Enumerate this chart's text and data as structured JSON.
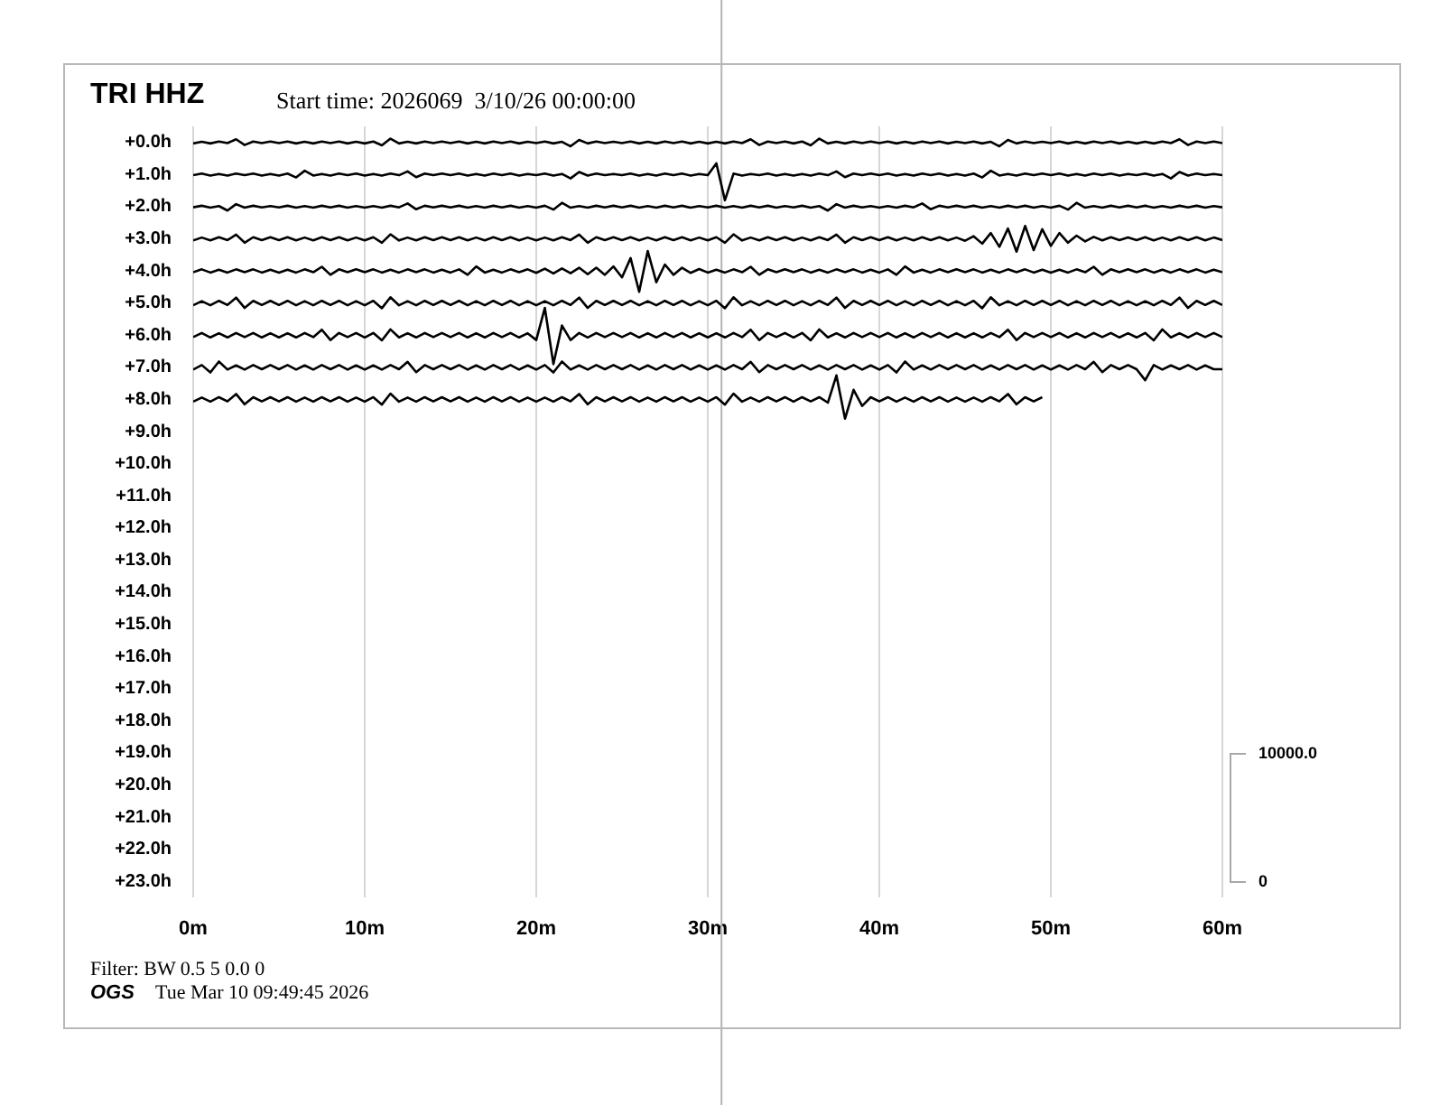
{
  "chart_data": {
    "type": "line",
    "title": "TRI HHZ",
    "subtitle": "Start time: 2026069  3/10/26 00:00:00",
    "annotations": [
      "10000.0",
      "0",
      "Filter: BW 0.5 5 0.0 0",
      "OGS",
      "Tue Mar 10 09:49:45 2026"
    ],
    "x": [
      0,
      0.5,
      1,
      1.5,
      2,
      2.5,
      3,
      3.5,
      4,
      4.5,
      5,
      5.5,
      6,
      6.5,
      7,
      7.5,
      8,
      8.5,
      9,
      9.5,
      10,
      10.5,
      11,
      11.5,
      12,
      12.5,
      13,
      13.5,
      14,
      14.5,
      15,
      15.5,
      16,
      16.5,
      17,
      17.5,
      18,
      18.5,
      19,
      19.5,
      20,
      20.5,
      21,
      21.5,
      22,
      22.5,
      23,
      23.5,
      24,
      24.5,
      25,
      25.5,
      26,
      26.5,
      27,
      27.5,
      28,
      28.5,
      29,
      29.5,
      30,
      30.5,
      31,
      31.5,
      32,
      32.5,
      33,
      33.5,
      34,
      34.5,
      35,
      35.5,
      36,
      36.5,
      37,
      37.5,
      38,
      38.5,
      39,
      39.5,
      40,
      40.5,
      41,
      41.5,
      42,
      42.5,
      43,
      43.5,
      44,
      44.5,
      45,
      45.5,
      46,
      46.5,
      47,
      47.5,
      48,
      48.5,
      49,
      49.5,
      50,
      50.5,
      51,
      51.5,
      52,
      52.5,
      53,
      53.5,
      54,
      54.5,
      55,
      55.5,
      56,
      56.5,
      57,
      57.5,
      58,
      58.5,
      59,
      59.5,
      60
    ],
    "xlim": [
      0,
      60
    ],
    "xticks": [
      {
        "value": 0,
        "label": "0m"
      },
      {
        "value": 10,
        "label": "10m"
      },
      {
        "value": 20,
        "label": "20m"
      },
      {
        "value": 30,
        "label": "30m"
      },
      {
        "value": 40,
        "label": "40m"
      },
      {
        "value": 50,
        "label": "50m"
      },
      {
        "value": 60,
        "label": "60m"
      }
    ],
    "ylim": [
      23.5,
      -0.5
    ],
    "yticks": [
      {
        "value": 0,
        "label": "+0.0h"
      },
      {
        "value": 1,
        "label": "+1.0h"
      },
      {
        "value": 2,
        "label": "+2.0h"
      },
      {
        "value": 3,
        "label": "+3.0h"
      },
      {
        "value": 4,
        "label": "+4.0h"
      },
      {
        "value": 5,
        "label": "+5.0h"
      },
      {
        "value": 6,
        "label": "+6.0h"
      },
      {
        "value": 7,
        "label": "+7.0h"
      },
      {
        "value": 8,
        "label": "+8.0h"
      },
      {
        "value": 9,
        "label": "+9.0h"
      },
      {
        "value": 10,
        "label": "+10.0h"
      },
      {
        "value": 11,
        "label": "+11.0h"
      },
      {
        "value": 12,
        "label": "+12.0h"
      },
      {
        "value": 13,
        "label": "+13.0h"
      },
      {
        "value": 14,
        "label": "+14.0h"
      },
      {
        "value": 15,
        "label": "+15.0h"
      },
      {
        "value": 16,
        "label": "+16.0h"
      },
      {
        "value": 17,
        "label": "+17.0h"
      },
      {
        "value": 18,
        "label": "+18.0h"
      },
      {
        "value": 19,
        "label": "+19.0h"
      },
      {
        "value": 20,
        "label": "+20.0h"
      },
      {
        "value": 21,
        "label": "+21.0h"
      },
      {
        "value": 22,
        "label": "+22.0h"
      },
      {
        "value": 23,
        "label": "+23.0h"
      }
    ],
    "grid": "x",
    "ref_lines": [
      {
        "axis": "x",
        "value": 30.8,
        "color": "#b4b4b4"
      }
    ],
    "series": [
      {
        "color": "#000000",
        "values": [
          0.03,
          -0.02,
          0.03,
          -0.03,
          0.02,
          -0.1,
          0.08,
          -0.03,
          0.02,
          -0.03,
          0.02,
          -0.03,
          0.03,
          -0.02,
          0.03,
          -0.03,
          0.02,
          -0.03,
          0.03,
          -0.02,
          0.03,
          -0.03,
          0.09,
          -0.12,
          0.03,
          -0.02,
          0.03,
          -0.03,
          0.02,
          -0.03,
          0.02,
          -0.03,
          0.03,
          -0.02,
          0.03,
          -0.03,
          0.02,
          -0.03,
          0.03,
          -0.02,
          0.02,
          -0.03,
          0.03,
          -0.02,
          0.12,
          -0.08,
          0.03,
          -0.03,
          0.02,
          -0.02,
          0.02,
          -0.03,
          0.03,
          -0.02,
          0.03,
          -0.03,
          0.02,
          -0.03,
          0.03,
          -0.02,
          0.03,
          -0.02,
          0.03,
          -0.03,
          0.02,
          -0.1,
          0.08,
          -0.03,
          0.02,
          -0.03,
          0.03,
          -0.03,
          0.09,
          -0.12,
          0.03,
          -0.02,
          0.03,
          -0.03,
          0.02,
          -0.03,
          0.02,
          -0.03,
          0.03,
          -0.02,
          0.03,
          -0.03,
          0.02,
          -0.03,
          0.03,
          -0.02,
          0.02,
          -0.03,
          0.03,
          -0.02,
          0.12,
          -0.08,
          0.03,
          -0.03,
          0.02,
          -0.02,
          0.02,
          -0.03,
          0.03,
          -0.02,
          0.03,
          -0.03,
          0.02,
          -0.03,
          0.03,
          -0.02,
          0.03,
          -0.02,
          0.03,
          -0.03,
          0.02,
          -0.1,
          0.08,
          -0.03,
          0.02,
          -0.03,
          0.02
        ]
      },
      {
        "color": "#000000",
        "values": [
          1.02,
          0.97,
          1.03,
          0.98,
          1.03,
          0.97,
          1.02,
          0.97,
          1.03,
          0.98,
          1.03,
          0.97,
          1.09,
          0.88,
          1.03,
          0.98,
          1.03,
          0.97,
          1.02,
          0.97,
          1.03,
          0.98,
          1.03,
          0.97,
          1.02,
          0.9,
          1.08,
          0.97,
          1.02,
          0.97,
          1.02,
          0.97,
          1.03,
          0.98,
          1.03,
          0.97,
          1.02,
          0.97,
          1.03,
          0.98,
          1.02,
          0.97,
          1.03,
          0.98,
          1.12,
          0.92,
          1.03,
          0.97,
          1.02,
          0.98,
          1.02,
          0.97,
          1.03,
          0.98,
          1.03,
          0.97,
          1.02,
          0.97,
          1.03,
          0.98,
          1.02,
          0.65,
          1.8,
          0.97,
          1.03,
          0.98,
          1.02,
          0.97,
          1.03,
          0.98,
          1.03,
          0.98,
          1.03,
          0.97,
          1.02,
          0.9,
          1.08,
          0.97,
          1.02,
          0.97,
          1.02,
          0.97,
          1.03,
          0.98,
          1.03,
          0.97,
          1.02,
          0.97,
          1.03,
          0.98,
          1.03,
          0.97,
          1.09,
          0.88,
          1.03,
          0.98,
          1.03,
          0.97,
          1.02,
          0.97,
          1.02,
          0.97,
          1.03,
          0.98,
          1.03,
          0.97,
          1.02,
          0.97,
          1.03,
          0.98,
          1.02,
          0.97,
          1.03,
          0.98,
          1.12,
          0.92,
          1.03,
          0.97,
          1.02,
          0.98,
          1.02
        ]
      },
      {
        "color": "#000000",
        "values": [
          2.02,
          1.97,
          2.03,
          1.98,
          2.12,
          1.92,
          2.03,
          1.97,
          2.02,
          1.98,
          2.02,
          1.97,
          2.03,
          1.98,
          2.03,
          1.97,
          2.02,
          1.97,
          2.03,
          1.98,
          2.03,
          1.98,
          2.03,
          1.97,
          2.02,
          1.9,
          2.08,
          1.97,
          2.02,
          1.97,
          2.02,
          1.97,
          2.03,
          1.98,
          2.03,
          1.97,
          2.02,
          1.97,
          2.03,
          1.98,
          2.03,
          1.97,
          2.09,
          1.88,
          2.03,
          1.98,
          2.03,
          1.97,
          2.02,
          1.97,
          2.02,
          1.97,
          2.03,
          1.98,
          2.03,
          1.97,
          2.02,
          1.97,
          2.03,
          1.98,
          2.02,
          1.97,
          2.03,
          1.98,
          2.03,
          1.97,
          2.02,
          1.97,
          2.03,
          1.98,
          2.02,
          1.97,
          2.03,
          1.98,
          2.12,
          1.92,
          2.03,
          1.97,
          2.02,
          1.98,
          2.03,
          1.98,
          2.03,
          1.97,
          2.02,
          1.9,
          2.08,
          1.97,
          2.02,
          1.97,
          2.02,
          1.97,
          2.03,
          1.98,
          2.03,
          1.97,
          2.02,
          1.97,
          2.03,
          1.98,
          2.03,
          1.97,
          2.09,
          1.88,
          2.03,
          1.98,
          2.03,
          1.97,
          2.02,
          1.97,
          2.02,
          1.97,
          2.03,
          1.98,
          2.03,
          1.97,
          2.02,
          1.97,
          2.03,
          1.98,
          2.02
        ]
      },
      {
        "color": "#000000",
        "values": [
          3.05,
          2.96,
          3.05,
          2.95,
          3.04,
          2.87,
          3.12,
          2.95,
          3.04,
          2.95,
          3.04,
          2.95,
          3.05,
          2.96,
          3.05,
          2.95,
          3.04,
          2.95,
          3.05,
          2.96,
          3.05,
          2.95,
          3.12,
          2.86,
          3.05,
          2.96,
          3.05,
          2.95,
          3.04,
          2.95,
          3.04,
          2.95,
          3.05,
          2.96,
          3.05,
          2.95,
          3.04,
          2.95,
          3.05,
          2.96,
          3.05,
          2.96,
          3.05,
          2.95,
          3.04,
          2.87,
          3.12,
          2.95,
          3.04,
          2.95,
          3.04,
          2.95,
          3.05,
          2.96,
          3.05,
          2.95,
          3.04,
          2.95,
          3.05,
          2.96,
          3.05,
          2.95,
          3.12,
          2.86,
          3.05,
          2.96,
          3.05,
          2.95,
          3.04,
          2.95,
          3.05,
          2.96,
          3.05,
          2.95,
          3.04,
          2.87,
          3.12,
          2.95,
          3.04,
          2.95,
          3.04,
          2.95,
          3.05,
          2.96,
          3.05,
          2.95,
          3.04,
          2.95,
          3.05,
          2.96,
          3.06,
          2.92,
          3.15,
          2.82,
          3.25,
          2.68,
          3.4,
          2.6,
          3.35,
          2.7,
          3.22,
          2.82,
          3.12,
          2.9,
          3.08,
          2.94,
          3.05,
          2.95,
          3.04,
          2.96,
          3.04,
          2.95,
          3.05,
          2.96,
          3.05,
          2.95,
          3.04,
          2.95,
          3.05,
          2.96,
          3.04
        ]
      },
      {
        "color": "#000000",
        "values": [
          4.04,
          3.95,
          4.05,
          3.96,
          4.05,
          3.95,
          4.04,
          3.95,
          4.05,
          3.96,
          4.05,
          3.96,
          4.05,
          3.95,
          4.04,
          3.87,
          4.12,
          3.95,
          4.04,
          3.95,
          4.04,
          3.95,
          4.05,
          3.96,
          4.05,
          3.95,
          4.04,
          3.95,
          4.05,
          3.96,
          4.05,
          3.95,
          4.12,
          3.86,
          4.05,
          3.96,
          4.05,
          3.95,
          4.04,
          3.95,
          4.06,
          3.93,
          4.08,
          3.92,
          4.07,
          3.9,
          4.1,
          3.9,
          4.12,
          3.86,
          4.2,
          3.6,
          4.65,
          3.38,
          4.35,
          3.8,
          4.12,
          3.9,
          4.06,
          3.94,
          4.05,
          3.96,
          4.05,
          3.95,
          4.04,
          3.87,
          4.12,
          3.95,
          4.04,
          3.95,
          4.04,
          3.95,
          4.05,
          3.96,
          4.05,
          3.95,
          4.04,
          3.95,
          4.05,
          3.96,
          4.05,
          3.95,
          4.12,
          3.86,
          4.05,
          3.96,
          4.05,
          3.95,
          4.04,
          3.95,
          4.04,
          3.95,
          4.05,
          3.96,
          4.05,
          3.95,
          4.04,
          3.95,
          4.05,
          3.96,
          4.05,
          3.96,
          4.05,
          3.95,
          4.04,
          3.87,
          4.12,
          3.95,
          4.04,
          3.95,
          4.04,
          3.95,
          4.05,
          3.96,
          4.05,
          3.95,
          4.04,
          3.95,
          4.05,
          3.96,
          4.04
        ]
      },
      {
        "color": "#000000",
        "values": [
          5.07,
          4.94,
          5.07,
          4.93,
          5.06,
          4.83,
          5.15,
          4.93,
          5.06,
          4.93,
          5.06,
          4.93,
          5.07,
          4.94,
          5.07,
          4.93,
          5.06,
          4.93,
          5.07,
          4.94,
          5.07,
          4.93,
          5.16,
          4.82,
          5.07,
          4.94,
          5.07,
          4.93,
          5.06,
          4.93,
          5.06,
          4.93,
          5.07,
          4.94,
          5.07,
          4.93,
          5.06,
          4.93,
          5.07,
          4.94,
          5.07,
          4.94,
          5.07,
          4.93,
          5.06,
          4.83,
          5.15,
          4.93,
          5.06,
          4.93,
          5.06,
          4.93,
          5.07,
          4.94,
          5.07,
          4.93,
          5.06,
          4.93,
          5.07,
          4.94,
          5.07,
          4.93,
          5.16,
          4.82,
          5.07,
          4.94,
          5.07,
          4.93,
          5.06,
          4.93,
          5.07,
          4.94,
          5.07,
          4.93,
          5.06,
          4.83,
          5.15,
          4.93,
          5.06,
          4.93,
          5.06,
          4.93,
          5.07,
          4.94,
          5.07,
          4.93,
          5.06,
          4.93,
          5.07,
          4.94,
          5.07,
          4.93,
          5.16,
          4.82,
          5.07,
          4.94,
          5.07,
          4.93,
          5.06,
          4.93,
          5.06,
          4.93,
          5.07,
          4.94,
          5.07,
          4.93,
          5.06,
          4.93,
          5.07,
          4.94,
          5.07,
          4.94,
          5.07,
          4.93,
          5.06,
          4.83,
          5.15,
          4.93,
          5.06,
          4.93,
          5.06
        ]
      },
      {
        "color": "#000000",
        "values": [
          6.06,
          5.93,
          6.07,
          5.94,
          6.07,
          5.93,
          6.06,
          5.93,
          6.07,
          5.94,
          6.07,
          5.94,
          6.07,
          5.93,
          6.06,
          5.83,
          6.15,
          5.93,
          6.06,
          5.93,
          6.07,
          5.93,
          6.16,
          5.82,
          6.07,
          5.94,
          6.07,
          5.93,
          6.06,
          5.93,
          6.06,
          5.93,
          6.07,
          5.94,
          6.07,
          5.93,
          6.06,
          5.93,
          6.07,
          5.94,
          6.15,
          5.15,
          6.9,
          5.7,
          6.15,
          5.93,
          6.07,
          5.93,
          6.06,
          5.93,
          6.06,
          5.93,
          6.07,
          5.94,
          6.07,
          5.93,
          6.06,
          5.93,
          6.07,
          5.94,
          6.07,
          5.94,
          6.07,
          5.93,
          6.06,
          5.83,
          6.15,
          5.93,
          6.06,
          5.93,
          6.07,
          5.93,
          6.16,
          5.82,
          6.07,
          5.94,
          6.07,
          5.93,
          6.06,
          5.93,
          6.06,
          5.93,
          6.07,
          5.94,
          6.07,
          5.93,
          6.06,
          5.93,
          6.07,
          5.94,
          6.07,
          5.94,
          6.07,
          5.93,
          6.06,
          5.83,
          6.15,
          5.93,
          6.06,
          5.93,
          6.06,
          5.93,
          6.07,
          5.94,
          6.07,
          5.93,
          6.06,
          5.93,
          6.07,
          5.94,
          6.07,
          5.93,
          6.16,
          5.82,
          6.07,
          5.94,
          6.07,
          5.93,
          6.06,
          5.93,
          6.06
        ]
      },
      {
        "color": "#000000",
        "values": [
          7.07,
          6.93,
          7.16,
          6.82,
          7.07,
          6.94,
          7.07,
          6.93,
          7.06,
          6.93,
          7.06,
          6.93,
          7.07,
          6.94,
          7.07,
          6.93,
          7.06,
          6.93,
          7.07,
          6.94,
          7.07,
          6.94,
          7.07,
          6.93,
          7.06,
          6.83,
          7.15,
          6.93,
          7.06,
          6.93,
          7.06,
          6.93,
          7.07,
          6.94,
          7.07,
          6.93,
          7.06,
          6.93,
          7.07,
          6.94,
          7.07,
          6.93,
          7.16,
          6.82,
          7.07,
          6.94,
          7.07,
          6.93,
          7.06,
          6.93,
          7.06,
          6.93,
          7.07,
          6.94,
          7.07,
          6.93,
          7.06,
          6.93,
          7.07,
          6.94,
          7.07,
          6.94,
          7.07,
          6.93,
          7.06,
          6.83,
          7.15,
          6.93,
          7.06,
          6.93,
          7.06,
          6.93,
          7.07,
          6.94,
          7.07,
          6.93,
          7.06,
          6.93,
          7.07,
          6.94,
          7.07,
          6.93,
          7.16,
          6.82,
          7.07,
          6.94,
          7.07,
          6.93,
          7.06,
          6.93,
          7.06,
          6.93,
          7.07,
          6.94,
          7.07,
          6.93,
          7.06,
          6.93,
          7.07,
          6.94,
          7.07,
          6.94,
          7.07,
          6.93,
          7.06,
          6.83,
          7.15,
          6.93,
          7.06,
          6.93,
          7.06,
          7.4,
          6.93,
          7.07,
          6.94,
          7.06,
          6.93,
          7.07,
          6.94,
          7.06,
          7.06
        ]
      },
      {
        "color": "#000000",
        "values": [
          8.07,
          7.94,
          8.07,
          7.93,
          8.06,
          7.83,
          8.15,
          7.93,
          8.06,
          7.93,
          8.06,
          7.93,
          8.07,
          7.94,
          8.07,
          7.93,
          8.06,
          7.93,
          8.07,
          7.94,
          8.07,
          7.93,
          8.16,
          7.82,
          8.07,
          7.94,
          8.07,
          7.93,
          8.06,
          7.93,
          8.06,
          7.93,
          8.07,
          7.94,
          8.07,
          7.93,
          8.06,
          7.93,
          8.07,
          7.94,
          8.07,
          7.94,
          8.07,
          7.93,
          8.06,
          7.83,
          8.15,
          7.93,
          8.06,
          7.93,
          8.06,
          7.93,
          8.07,
          7.94,
          8.07,
          7.93,
          8.06,
          7.93,
          8.07,
          7.94,
          8.07,
          7.93,
          8.16,
          7.82,
          8.07,
          7.94,
          8.07,
          7.93,
          8.06,
          7.93,
          8.07,
          7.93,
          8.06,
          7.93,
          8.1,
          7.25,
          8.6,
          7.7,
          8.2,
          7.93,
          8.06,
          7.93,
          8.07,
          7.94,
          8.07,
          7.93,
          8.06,
          7.93,
          8.07,
          7.94,
          8.07,
          7.94,
          8.07,
          7.93,
          8.06,
          7.83,
          8.15,
          7.93,
          8.06,
          7.93,
          null,
          null,
          null,
          null,
          null,
          null,
          null,
          null,
          null,
          null,
          null,
          null,
          null,
          null,
          null,
          null,
          null,
          null,
          null,
          null,
          null
        ]
      }
    ]
  }
}
